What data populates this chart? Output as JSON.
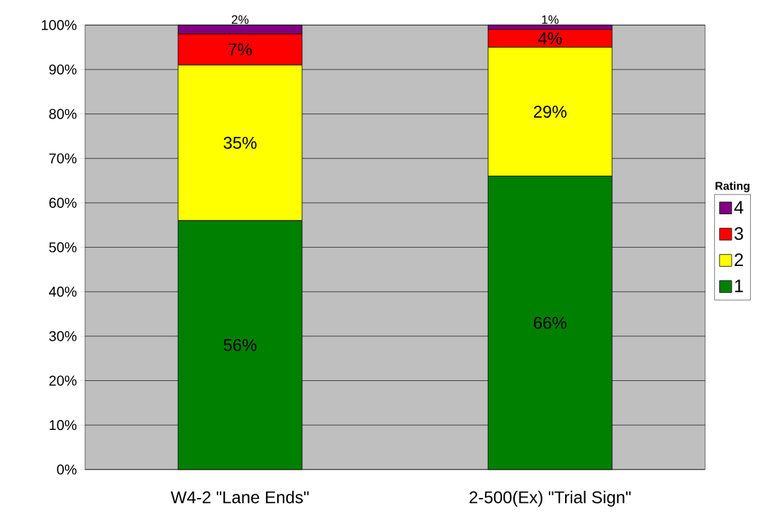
{
  "chart_data": {
    "type": "bar",
    "stacked": true,
    "categories": [
      "W4-2 \"Lane Ends\"",
      "2-500(Ex) \"Trial Sign\""
    ],
    "legend_title": "Rating",
    "legend": "right",
    "grid": "y",
    "ylim": [
      0,
      100
    ],
    "yticks": [
      {
        "value": 0,
        "label": "0%"
      },
      {
        "value": 10,
        "label": "10%"
      },
      {
        "value": 20,
        "label": "20%"
      },
      {
        "value": 30,
        "label": "30%"
      },
      {
        "value": 40,
        "label": "40%"
      },
      {
        "value": 50,
        "label": "50%"
      },
      {
        "value": 60,
        "label": "60%"
      },
      {
        "value": 70,
        "label": "70%"
      },
      {
        "value": 80,
        "label": "80%"
      },
      {
        "value": 90,
        "label": "90%"
      },
      {
        "value": 100,
        "label": "100%"
      }
    ],
    "series": [
      {
        "name": "1",
        "color": "#008000",
        "values": [
          56,
          66
        ],
        "value_labels": [
          "56%",
          "66%"
        ]
      },
      {
        "name": "2",
        "color": "#ffff00",
        "values": [
          35,
          29
        ],
        "value_labels": [
          "35%",
          "29%"
        ]
      },
      {
        "name": "3",
        "color": "#ff0000",
        "values": [
          7,
          4
        ],
        "value_labels": [
          "7%",
          "4%"
        ]
      },
      {
        "name": "4",
        "color": "#800080",
        "values": [
          2,
          1
        ],
        "value_labels": [
          "2%",
          "1%"
        ]
      }
    ]
  }
}
